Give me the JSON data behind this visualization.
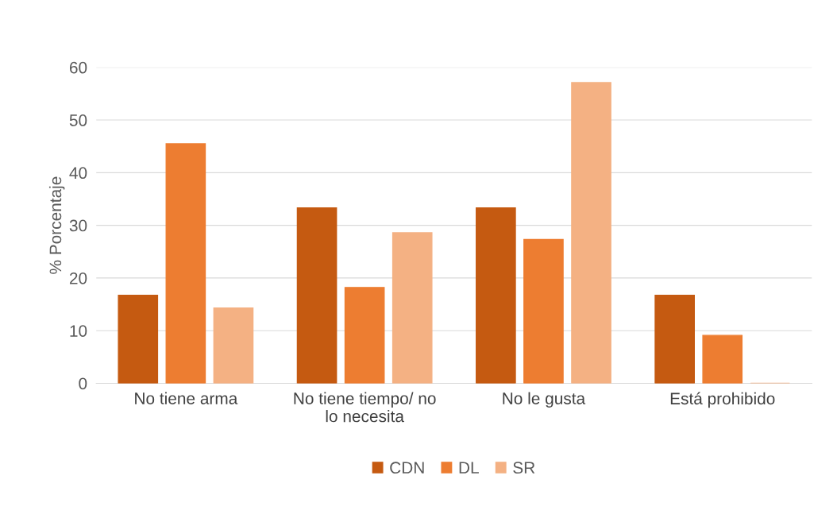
{
  "chart_data": {
    "type": "bar",
    "ylabel": "% Porcentaje",
    "categories": [
      "No tiene arma",
      "No tiene tiempo/ no\nlo necesita",
      "No le gusta",
      "Está prohibido"
    ],
    "series": [
      {
        "name": "CDN",
        "color": "#c55a11",
        "values": [
          16.7,
          33.3,
          33.3,
          16.7
        ]
      },
      {
        "name": "DL",
        "color": "#ed7d31",
        "values": [
          45.5,
          18.2,
          27.3,
          9.1
        ]
      },
      {
        "name": "SR",
        "color": "#f4b183",
        "values": [
          14.3,
          28.6,
          57.1,
          0
        ]
      }
    ],
    "ylim": [
      0,
      60
    ],
    "yticks": [
      0,
      10,
      20,
      30,
      40,
      50,
      60
    ],
    "grid": "y",
    "legend": "bottom"
  }
}
